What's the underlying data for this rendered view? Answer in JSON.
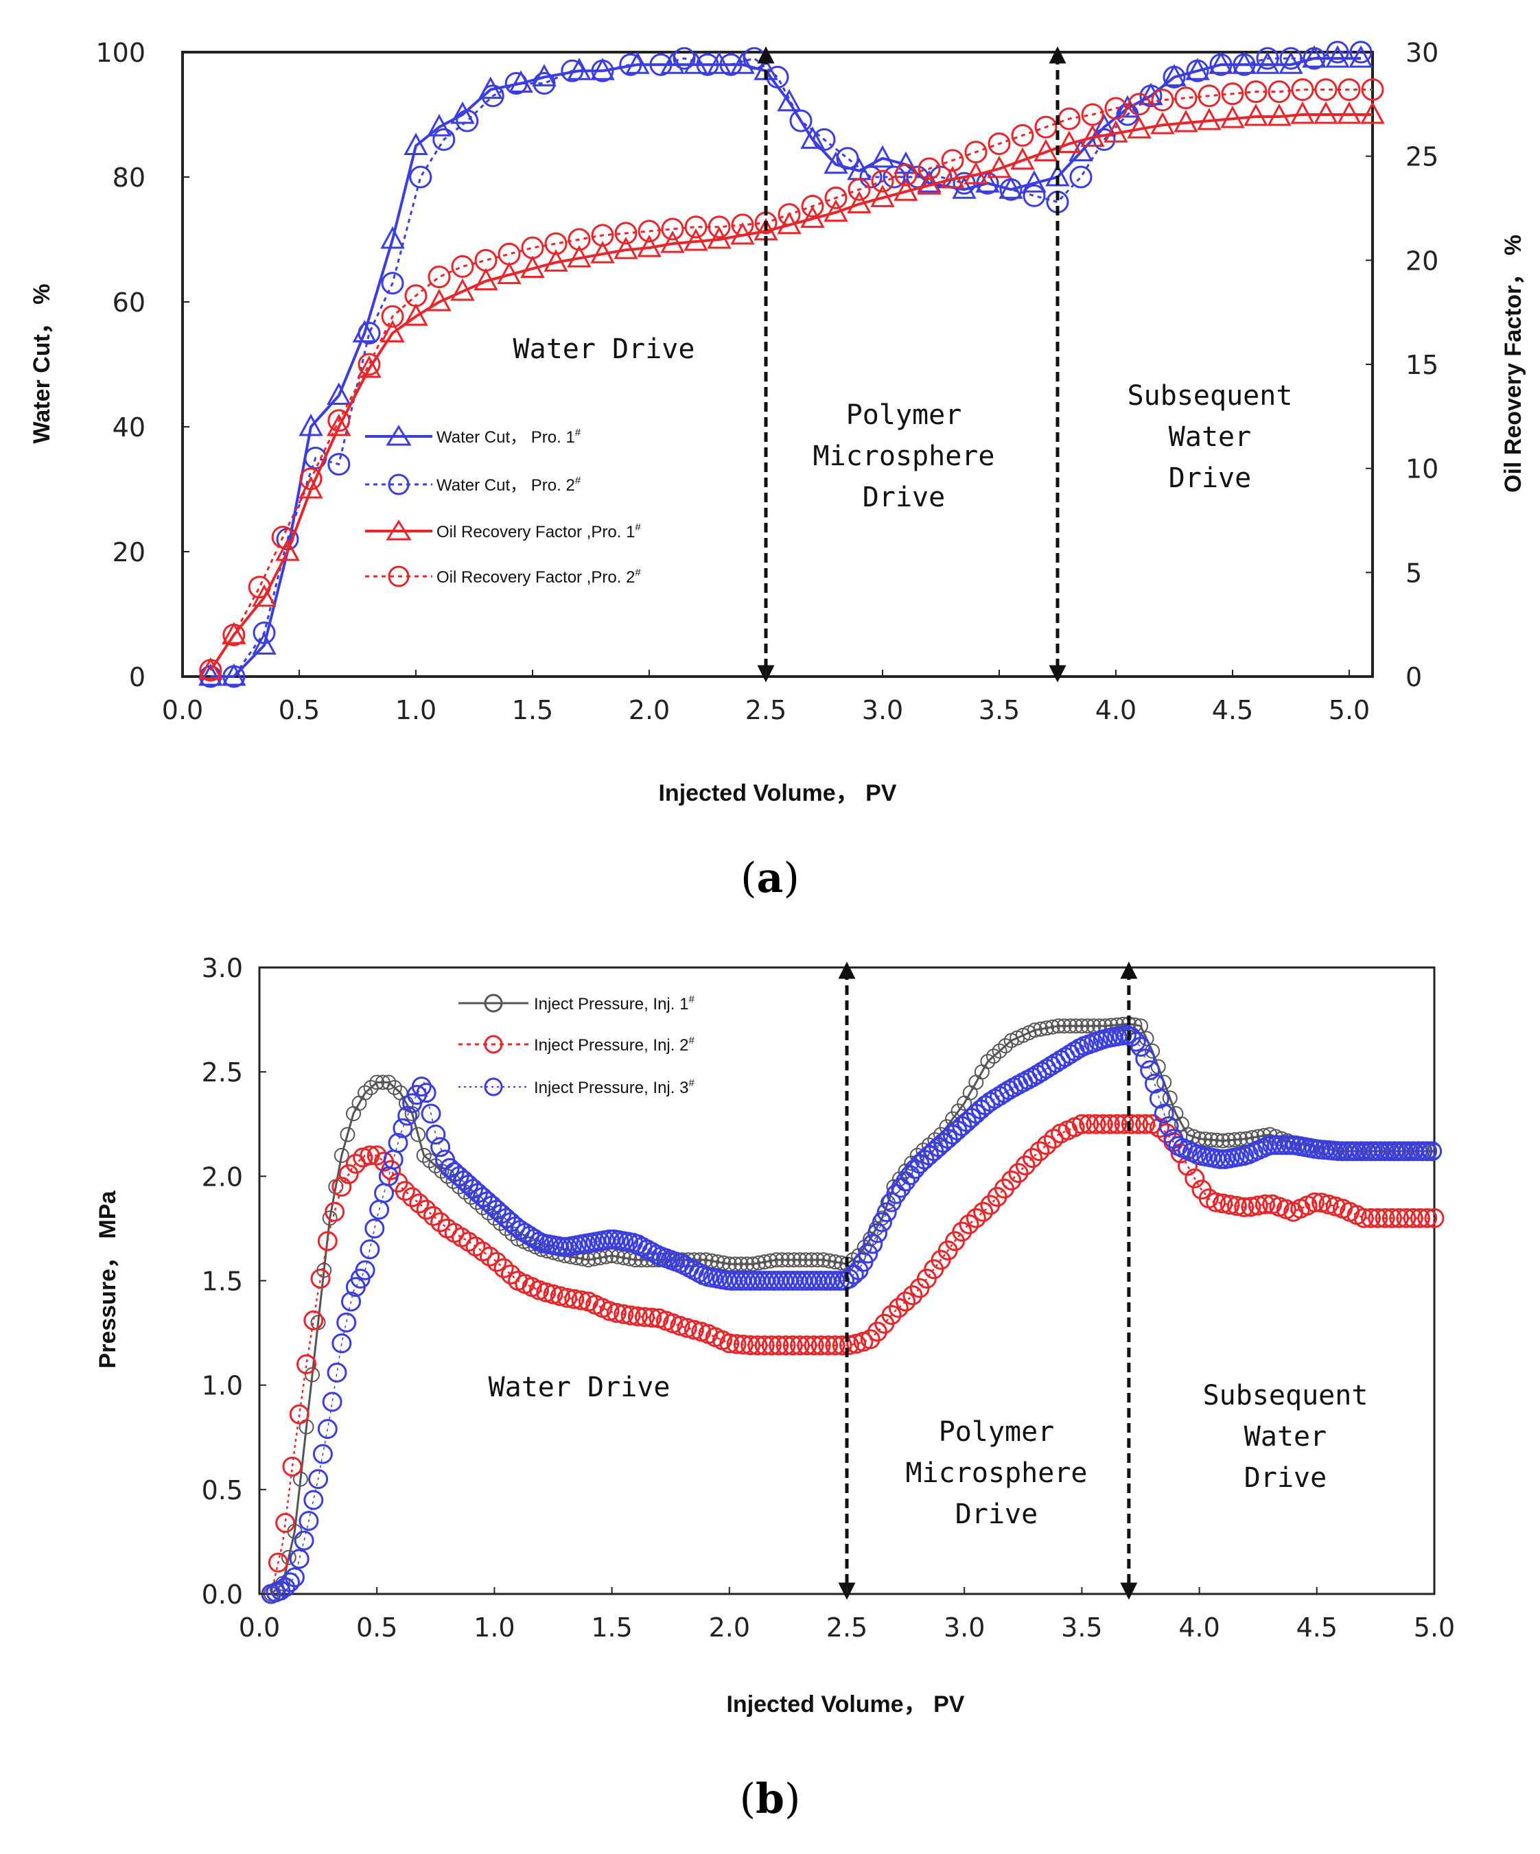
{
  "chart_data": [
    {
      "type": "line",
      "panel": "a",
      "caption_open": "(",
      "caption_letter": "a",
      "caption_close": ")",
      "xlabel": "Injected Volume， PV",
      "ylabel_left": "Water Cut， %",
      "ylabel_right": "Oil Reovery Factor， %",
      "xlim": [
        0,
        5.1
      ],
      "ylim_left": [
        0,
        100
      ],
      "ylim_right": [
        0,
        30
      ],
      "xticks": [
        "0.0",
        "0.5",
        "1.0",
        "1.5",
        "2.0",
        "2.5",
        "3.0",
        "3.5",
        "4.0",
        "4.5",
        "5.0"
      ],
      "yticks_left": [
        "0",
        "20",
        "40",
        "60",
        "80",
        "100"
      ],
      "yticks_right": [
        "0",
        "5",
        "10",
        "15",
        "20",
        "25",
        "30"
      ],
      "phase_markers": [
        2.5,
        3.75
      ],
      "phase_labels": [
        {
          "lines": [
            "Water Drive"
          ]
        },
        {
          "lines": [
            "Polymer",
            "Microsphere",
            "Drive"
          ]
        },
        {
          "lines": [
            "Subsequent",
            "Water",
            "Drive"
          ]
        }
      ],
      "series": [
        {
          "name": "Water Cut， Pro. 1",
          "sup": "#",
          "axis": "left",
          "color": "#3a3ee0",
          "marker": "triangle",
          "dash": false,
          "x": [
            0.12,
            0.22,
            0.35,
            0.45,
            0.55,
            0.67,
            0.78,
            0.9,
            1.0,
            1.1,
            1.2,
            1.32,
            1.45,
            1.55,
            1.7,
            1.8,
            1.95,
            2.1,
            2.2,
            2.3,
            2.4,
            2.5,
            2.6,
            2.7,
            2.8,
            2.9,
            3.0,
            3.1,
            3.2,
            3.35,
            3.45,
            3.55,
            3.65,
            3.75,
            3.85,
            3.95,
            4.05,
            4.15,
            4.25,
            4.35,
            4.45,
            4.55,
            4.65,
            4.75,
            4.85,
            4.95,
            5.05
          ],
          "y": [
            0,
            0,
            5,
            20,
            40,
            45,
            55,
            70,
            85,
            88,
            90,
            94,
            95,
            96,
            97,
            97,
            98,
            98,
            98,
            98,
            98,
            97,
            92,
            86,
            82,
            81,
            83,
            82,
            79,
            78,
            79,
            78,
            79,
            80,
            84,
            88,
            91,
            93,
            96,
            97,
            98,
            98,
            98,
            98,
            99,
            99,
            99
          ]
        },
        {
          "name": "Water Cut， Pro. 2",
          "sup": "#",
          "axis": "left",
          "color": "#3a3ee0",
          "marker": "circle",
          "dash": true,
          "x": [
            0.12,
            0.22,
            0.35,
            0.45,
            0.57,
            0.67,
            0.8,
            0.9,
            1.02,
            1.12,
            1.22,
            1.33,
            1.43,
            1.55,
            1.67,
            1.8,
            1.92,
            2.05,
            2.15,
            2.25,
            2.35,
            2.45,
            2.55,
            2.65,
            2.75,
            2.85,
            2.95,
            3.05,
            3.15,
            3.25,
            3.35,
            3.45,
            3.55,
            3.65,
            3.75,
            3.85,
            3.95,
            4.05,
            4.15,
            4.25,
            4.35,
            4.45,
            4.55,
            4.65,
            4.75,
            4.85,
            4.95,
            5.05
          ],
          "y": [
            0,
            0,
            7,
            22,
            35,
            34,
            55,
            63,
            80,
            86,
            89,
            93,
            95,
            95,
            97,
            97,
            98,
            98,
            99,
            98,
            98,
            99,
            96,
            89,
            86,
            83,
            80,
            80,
            80,
            80,
            79,
            79,
            78,
            77,
            76,
            80,
            86,
            90,
            93,
            96,
            97,
            98,
            98,
            99,
            99,
            99,
            100,
            100
          ]
        },
        {
          "name": "Oil Recovery Factor ,Pro. 1",
          "sup": "#",
          "axis": "right",
          "color": "#e8262a",
          "marker": "triangle",
          "dash": false,
          "x": [
            0.12,
            0.22,
            0.35,
            0.45,
            0.55,
            0.67,
            0.8,
            0.9,
            1.0,
            1.1,
            1.2,
            1.3,
            1.4,
            1.5,
            1.6,
            1.7,
            1.8,
            1.9,
            2.0,
            2.1,
            2.2,
            2.3,
            2.4,
            2.5,
            2.6,
            2.7,
            2.8,
            2.9,
            3.0,
            3.1,
            3.2,
            3.3,
            3.4,
            3.5,
            3.6,
            3.7,
            3.8,
            3.9,
            4.0,
            4.1,
            4.2,
            4.3,
            4.4,
            4.5,
            4.6,
            4.7,
            4.8,
            4.9,
            5.0,
            5.1
          ],
          "y": [
            0.3,
            2.0,
            3.8,
            6.0,
            9.0,
            12.0,
            14.8,
            16.5,
            17.3,
            18.0,
            18.5,
            19.0,
            19.3,
            19.6,
            19.9,
            20.1,
            20.3,
            20.5,
            20.6,
            20.8,
            20.9,
            21.0,
            21.2,
            21.4,
            21.7,
            22.0,
            22.3,
            22.7,
            23.0,
            23.3,
            23.6,
            23.9,
            24.1,
            24.4,
            24.8,
            25.2,
            25.6,
            25.9,
            26.1,
            26.3,
            26.5,
            26.6,
            26.7,
            26.8,
            26.9,
            26.9,
            27.0,
            27.0,
            27.0,
            27.0
          ]
        },
        {
          "name": "Oil Recovery Factor ,Pro. 2",
          "sup": "#",
          "axis": "right",
          "color": "#e8262a",
          "marker": "circle",
          "dash": true,
          "x": [
            0.12,
            0.22,
            0.33,
            0.43,
            0.55,
            0.67,
            0.8,
            0.9,
            1.0,
            1.1,
            1.2,
            1.3,
            1.4,
            1.5,
            1.6,
            1.7,
            1.8,
            1.9,
            2.0,
            2.1,
            2.2,
            2.3,
            2.4,
            2.5,
            2.6,
            2.7,
            2.8,
            2.9,
            3.0,
            3.1,
            3.2,
            3.3,
            3.4,
            3.5,
            3.6,
            3.7,
            3.8,
            3.9,
            4.0,
            4.1,
            4.2,
            4.3,
            4.4,
            4.5,
            4.6,
            4.7,
            4.8,
            4.9,
            5.0,
            5.1
          ],
          "y": [
            0.3,
            2.0,
            4.3,
            6.7,
            9.5,
            12.3,
            15.0,
            17.3,
            18.3,
            19.2,
            19.7,
            20.0,
            20.3,
            20.6,
            20.8,
            21.0,
            21.2,
            21.3,
            21.4,
            21.5,
            21.6,
            21.6,
            21.7,
            21.8,
            22.2,
            22.6,
            23.0,
            23.4,
            23.8,
            24.1,
            24.4,
            24.8,
            25.2,
            25.6,
            26.0,
            26.4,
            26.8,
            27.0,
            27.3,
            27.5,
            27.7,
            27.8,
            27.9,
            28.0,
            28.1,
            28.1,
            28.2,
            28.2,
            28.2,
            28.2
          ]
        }
      ]
    },
    {
      "type": "line",
      "panel": "b",
      "caption_open": "(",
      "caption_letter": "b",
      "caption_close": ")",
      "xlabel": "Injected Volume， PV",
      "ylabel": "Pressure， MPa",
      "xlim": [
        0,
        5
      ],
      "ylim": [
        0,
        3
      ],
      "xticks": [
        "0.0",
        "0.5",
        "1.0",
        "1.5",
        "2.0",
        "2.5",
        "3.0",
        "3.5",
        "4.0",
        "4.5",
        "5.0"
      ],
      "yticks": [
        "0.0",
        "0.5",
        "1.0",
        "1.5",
        "2.0",
        "2.5",
        "3.0"
      ],
      "phase_markers": [
        2.5,
        3.7
      ],
      "phase_labels": [
        {
          "lines": [
            "Water Drive"
          ]
        },
        {
          "lines": [
            "Polymer",
            "Microsphere",
            "Drive"
          ]
        },
        {
          "lines": [
            "Subsequent",
            "Water",
            "Drive"
          ]
        }
      ],
      "series": [
        {
          "name": "Inject Pressure, Inj. 1",
          "sup": "#",
          "color": "#555555",
          "marker": "circle",
          "dash": false,
          "width": 3,
          "step": 0.025,
          "x": [
            0.05,
            0.1,
            0.15,
            0.2,
            0.25,
            0.3,
            0.35,
            0.4,
            0.45,
            0.5,
            0.55,
            0.6,
            0.65,
            0.7,
            0.8,
            0.9,
            1.0,
            1.1,
            1.2,
            1.3,
            1.4,
            1.5,
            1.6,
            1.7,
            1.8,
            1.9,
            2.0,
            2.1,
            2.2,
            2.3,
            2.4,
            2.5,
            2.55,
            2.6,
            2.65,
            2.7,
            2.8,
            2.9,
            3.0,
            3.1,
            3.2,
            3.3,
            3.4,
            3.5,
            3.6,
            3.7,
            3.75,
            3.8,
            3.85,
            3.9,
            3.95,
            4.0,
            4.1,
            4.2,
            4.3,
            4.4,
            4.5,
            4.6,
            4.7,
            4.8,
            4.9,
            5.0
          ],
          "y": [
            0.0,
            0.05,
            0.3,
            0.8,
            1.3,
            1.8,
            2.1,
            2.3,
            2.4,
            2.45,
            2.45,
            2.4,
            2.3,
            2.1,
            2.0,
            1.9,
            1.8,
            1.7,
            1.65,
            1.62,
            1.6,
            1.62,
            1.6,
            1.6,
            1.6,
            1.6,
            1.58,
            1.58,
            1.6,
            1.6,
            1.6,
            1.58,
            1.62,
            1.7,
            1.8,
            1.95,
            2.1,
            2.2,
            2.35,
            2.55,
            2.65,
            2.7,
            2.72,
            2.72,
            2.72,
            2.73,
            2.72,
            2.6,
            2.45,
            2.3,
            2.2,
            2.18,
            2.17,
            2.18,
            2.2,
            2.16,
            2.14,
            2.12,
            2.12,
            2.12,
            2.12,
            2.12
          ]
        },
        {
          "name": "Inject Pressure, Inj. 2",
          "sup": "#",
          "color": "#e8262a",
          "marker": "circle",
          "dash": true,
          "width": 2.5,
          "step": 0.03,
          "x": [
            0.05,
            0.1,
            0.15,
            0.2,
            0.25,
            0.3,
            0.35,
            0.4,
            0.45,
            0.5,
            0.55,
            0.6,
            0.7,
            0.8,
            0.9,
            1.0,
            1.1,
            1.2,
            1.3,
            1.4,
            1.5,
            1.6,
            1.7,
            1.8,
            1.9,
            2.0,
            2.1,
            2.2,
            2.3,
            2.4,
            2.5,
            2.55,
            2.6,
            2.65,
            2.7,
            2.8,
            2.9,
            3.0,
            3.1,
            3.2,
            3.3,
            3.4,
            3.5,
            3.6,
            3.7,
            3.8,
            3.85,
            3.9,
            3.95,
            4.0,
            4.05,
            4.1,
            4.2,
            4.3,
            4.4,
            4.5,
            4.6,
            4.7,
            4.8,
            4.9,
            5.0
          ],
          "y": [
            0.0,
            0.25,
            0.7,
            1.1,
            1.45,
            1.75,
            1.95,
            2.05,
            2.1,
            2.1,
            2.05,
            1.95,
            1.85,
            1.75,
            1.68,
            1.6,
            1.5,
            1.45,
            1.42,
            1.4,
            1.35,
            1.33,
            1.32,
            1.28,
            1.25,
            1.2,
            1.19,
            1.19,
            1.19,
            1.19,
            1.19,
            1.2,
            1.22,
            1.28,
            1.35,
            1.45,
            1.6,
            1.75,
            1.85,
            1.98,
            2.1,
            2.2,
            2.25,
            2.25,
            2.25,
            2.25,
            2.22,
            2.15,
            2.05,
            1.95,
            1.88,
            1.87,
            1.85,
            1.87,
            1.83,
            1.88,
            1.85,
            1.8,
            1.8,
            1.8,
            1.8
          ]
        },
        {
          "name": "Inject Pressure, Inj. 3",
          "sup": "#",
          "color": "#3a3ee0",
          "marker": "circle",
          "dash": true,
          "width": 1.5,
          "step": 0.02,
          "x": [
            0.05,
            0.1,
            0.15,
            0.2,
            0.25,
            0.3,
            0.35,
            0.4,
            0.45,
            0.5,
            0.55,
            0.6,
            0.65,
            0.7,
            0.75,
            0.8,
            0.9,
            1.0,
            1.1,
            1.2,
            1.3,
            1.4,
            1.5,
            1.6,
            1.7,
            1.8,
            1.9,
            2.0,
            2.1,
            2.2,
            2.3,
            2.4,
            2.5,
            2.55,
            2.6,
            2.65,
            2.7,
            2.8,
            2.9,
            3.0,
            3.1,
            3.2,
            3.3,
            3.4,
            3.5,
            3.6,
            3.7,
            3.75,
            3.8,
            3.85,
            3.9,
            4.0,
            4.1,
            4.2,
            4.3,
            4.4,
            4.5,
            4.6,
            4.7,
            4.8,
            4.9,
            5.0
          ],
          "y": [
            0.0,
            0.02,
            0.08,
            0.3,
            0.55,
            0.85,
            1.2,
            1.45,
            1.55,
            1.8,
            2.0,
            2.2,
            2.35,
            2.45,
            2.2,
            2.05,
            1.95,
            1.85,
            1.75,
            1.68,
            1.66,
            1.68,
            1.7,
            1.68,
            1.62,
            1.58,
            1.52,
            1.5,
            1.5,
            1.5,
            1.5,
            1.5,
            1.5,
            1.55,
            1.65,
            1.78,
            1.9,
            2.05,
            2.15,
            2.25,
            2.35,
            2.42,
            2.48,
            2.55,
            2.62,
            2.66,
            2.68,
            2.62,
            2.48,
            2.3,
            2.15,
            2.1,
            2.08,
            2.1,
            2.15,
            2.15,
            2.13,
            2.12,
            2.12,
            2.12,
            2.12,
            2.12
          ]
        }
      ]
    }
  ]
}
